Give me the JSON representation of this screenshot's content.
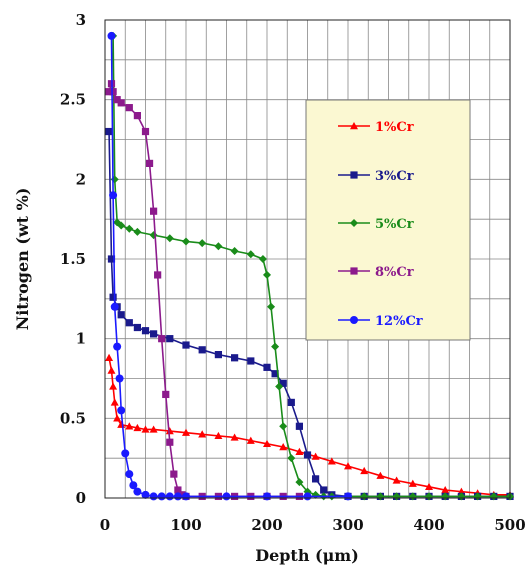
{
  "chart_data": {
    "type": "line",
    "title": "",
    "xlabel": "Depth (μm)",
    "ylabel": "Nitrogen (wt %)",
    "xlim": [
      0,
      500
    ],
    "ylim": [
      0,
      3
    ],
    "x_ticks": [
      "0",
      "100",
      "200",
      "300",
      "400",
      "500"
    ],
    "y_ticks": [
      "0",
      "0.5",
      "1",
      "1.5",
      "2",
      "2.5",
      "3"
    ],
    "grid": true,
    "legend_position": "upper-right",
    "series": [
      {
        "name": "1%Cr",
        "color": "#ff0000",
        "marker": "triangle",
        "x": [
          5,
          8,
          10,
          12,
          15,
          20,
          30,
          40,
          50,
          60,
          80,
          100,
          120,
          140,
          160,
          180,
          200,
          220,
          240,
          260,
          280,
          300,
          320,
          340,
          360,
          380,
          400,
          420,
          440,
          460,
          480,
          500
        ],
        "y": [
          0.88,
          0.8,
          0.7,
          0.6,
          0.5,
          0.46,
          0.45,
          0.44,
          0.43,
          0.43,
          0.42,
          0.41,
          0.4,
          0.39,
          0.38,
          0.36,
          0.34,
          0.32,
          0.29,
          0.26,
          0.23,
          0.2,
          0.17,
          0.14,
          0.11,
          0.09,
          0.07,
          0.05,
          0.04,
          0.03,
          0.02,
          0.02
        ]
      },
      {
        "name": "3%Cr",
        "color": "#1a1a8c",
        "marker": "square",
        "x": [
          5,
          8,
          10,
          15,
          20,
          30,
          40,
          50,
          60,
          80,
          100,
          120,
          140,
          160,
          180,
          200,
          210,
          220,
          230,
          240,
          250,
          260,
          270,
          280,
          300,
          320,
          340,
          360,
          380,
          400,
          420,
          440,
          460,
          480,
          500
        ],
        "y": [
          2.3,
          1.5,
          1.26,
          1.2,
          1.15,
          1.1,
          1.07,
          1.05,
          1.03,
          1.0,
          0.96,
          0.93,
          0.9,
          0.88,
          0.86,
          0.82,
          0.78,
          0.72,
          0.6,
          0.45,
          0.27,
          0.12,
          0.05,
          0.02,
          0.01,
          0.01,
          0.01,
          0.01,
          0.01,
          0.01,
          0.01,
          0.01,
          0.01,
          0.01,
          0.01
        ]
      },
      {
        "name": "5%Cr",
        "color": "#1a8c1a",
        "marker": "diamond",
        "x": [
          10,
          12,
          15,
          20,
          30,
          40,
          60,
          80,
          100,
          120,
          140,
          160,
          180,
          195,
          200,
          205,
          210,
          215,
          220,
          230,
          240,
          250,
          260,
          270,
          280,
          300,
          320,
          340,
          360,
          380,
          400,
          420,
          440,
          460,
          480,
          500
        ],
        "y": [
          2.9,
          2.0,
          1.73,
          1.71,
          1.69,
          1.67,
          1.65,
          1.63,
          1.61,
          1.6,
          1.58,
          1.55,
          1.53,
          1.5,
          1.4,
          1.2,
          0.95,
          0.7,
          0.45,
          0.25,
          0.1,
          0.04,
          0.02,
          0.01,
          0.01,
          0.01,
          0.01,
          0.01,
          0.01,
          0.01,
          0.01,
          0.01,
          0.01,
          0.01,
          0.01,
          0.01
        ]
      },
      {
        "name": "8%Cr",
        "color": "#8c1a8c",
        "marker": "square",
        "x": [
          5,
          8,
          10,
          15,
          20,
          30,
          40,
          50,
          55,
          60,
          65,
          70,
          75,
          80,
          85,
          90,
          95,
          100,
          120,
          140,
          160,
          180,
          200,
          220,
          240
        ],
        "y": [
          2.55,
          2.6,
          2.55,
          2.5,
          2.48,
          2.45,
          2.4,
          2.3,
          2.1,
          1.8,
          1.4,
          1.0,
          0.65,
          0.35,
          0.15,
          0.05,
          0.02,
          0.01,
          0.01,
          0.01,
          0.01,
          0.01,
          0.01,
          0.01,
          0.01
        ]
      },
      {
        "name": "12%Cr",
        "color": "#1a1aff",
        "marker": "circle",
        "x": [
          8,
          10,
          12,
          15,
          18,
          20,
          25,
          30,
          35,
          40,
          50,
          60,
          70,
          80,
          90,
          100,
          150,
          200,
          250,
          300
        ],
        "y": [
          2.9,
          1.9,
          1.2,
          0.95,
          0.75,
          0.55,
          0.28,
          0.15,
          0.08,
          0.04,
          0.02,
          0.01,
          0.01,
          0.01,
          0.01,
          0.01,
          0.01,
          0.01,
          0.01,
          0.01
        ]
      }
    ]
  }
}
